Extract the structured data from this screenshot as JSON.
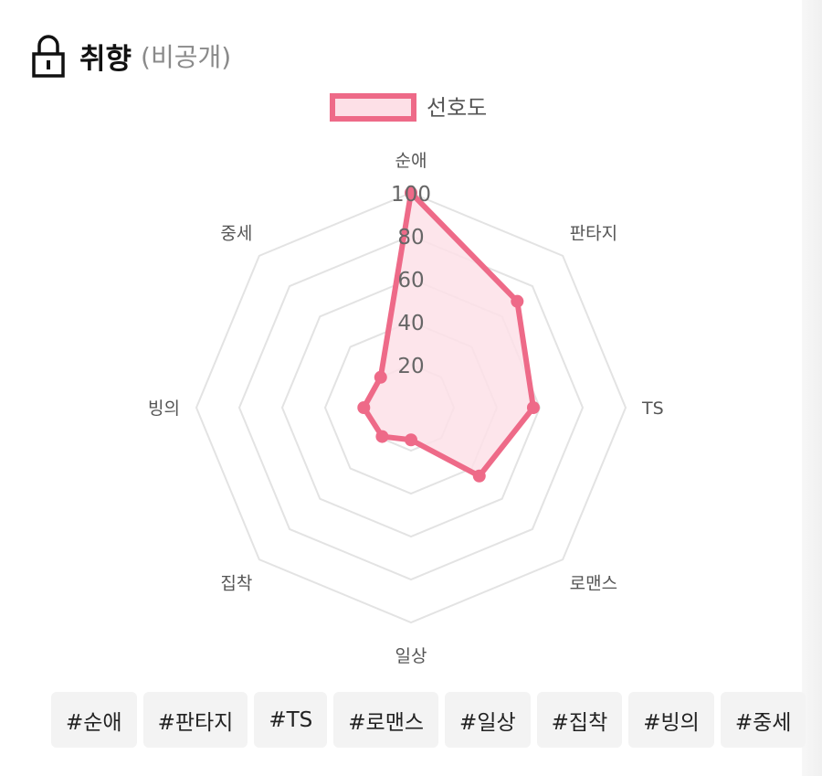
{
  "header": {
    "title": "취향",
    "subtitle": "(비공개)",
    "icon": "lock-icon"
  },
  "chart_data": {
    "type": "radar",
    "title": "",
    "categories": [
      "순애",
      "판타지",
      "TS",
      "로맨스",
      "일상",
      "집착",
      "빙의",
      "중세"
    ],
    "series": [
      {
        "name": "선호도",
        "values": [
          100,
          70,
          57,
          45,
          15,
          19,
          22,
          20
        ]
      }
    ],
    "rlim": [
      0,
      100
    ],
    "ticks": [
      "20",
      "40",
      "60",
      "80",
      "100"
    ],
    "tick_values": [
      20,
      40,
      60,
      80,
      100
    ],
    "legend": "top",
    "grid": true,
    "colors": {
      "stroke": "#ee6a88",
      "fill": "#fde0e7",
      "grid": "#e3e3e3",
      "label": "#555555"
    }
  },
  "tags": [
    "#순애",
    "#판타지",
    "#TS",
    "#로맨스",
    "#일상",
    "#집착",
    "#빙의",
    "#중세"
  ]
}
